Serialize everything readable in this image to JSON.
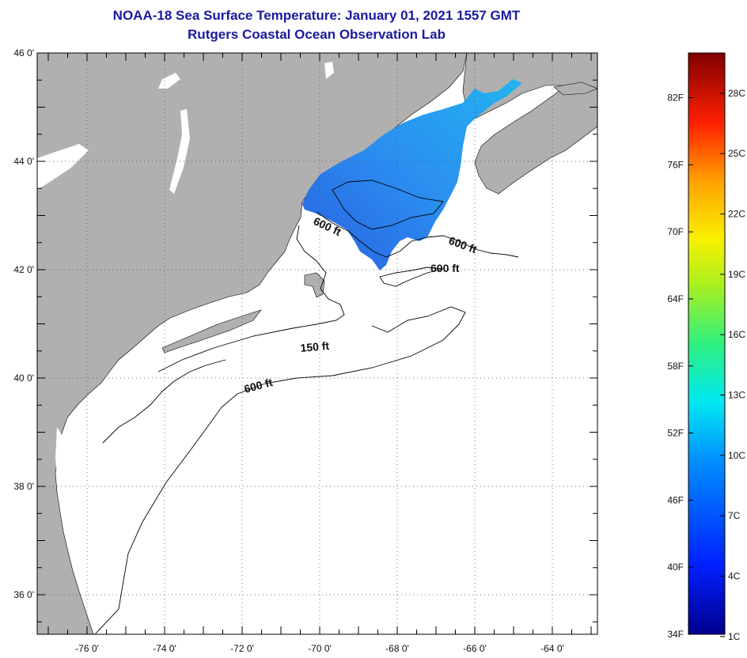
{
  "header": {
    "title": "NOAA-18 Sea Surface Temperature:  January 01, 2021 1557 GMT",
    "subtitle": "Rutgers Coastal Ocean Observation Lab"
  },
  "map": {
    "lat_ticks": [
      {
        "value": 46,
        "label": "46 0'"
      },
      {
        "value": 44,
        "label": "44 0'"
      },
      {
        "value": 42,
        "label": "42 0'"
      },
      {
        "value": 40,
        "label": "40 0'"
      },
      {
        "value": 38,
        "label": "38 0'"
      },
      {
        "value": 36,
        "label": "36 0'"
      }
    ],
    "lon_ticks": [
      {
        "value": -76,
        "label": "-76 0'"
      },
      {
        "value": -74,
        "label": "-74 0'"
      },
      {
        "value": -72,
        "label": "-72 0'"
      },
      {
        "value": -70,
        "label": "-70 0'"
      },
      {
        "value": -68,
        "label": "-68 0'"
      },
      {
        "value": -66,
        "label": "-66 0'"
      },
      {
        "value": -64,
        "label": "-64 0'"
      }
    ],
    "contour_labels": [
      "600 ft",
      "600 ft",
      "600 ft",
      "150 ft",
      "600 ft"
    ]
  },
  "colorbar": {
    "fahrenheit_labels": [
      "82F",
      "76F",
      "70F",
      "64F",
      "58F",
      "52F",
      "46F",
      "40F",
      "34F"
    ],
    "celsius_labels": [
      "28C",
      "25C",
      "22C",
      "19C",
      "16C",
      "13C",
      "10C",
      "7C",
      "4C",
      "1C"
    ],
    "range_f": [
      34,
      86
    ]
  },
  "colors": {
    "title": "#1a1a9e",
    "land": "#b0b0b0",
    "ocean": "#ffffff",
    "sst_cold": "#1f6fe0",
    "sst_warm": "#1aa6f0"
  }
}
